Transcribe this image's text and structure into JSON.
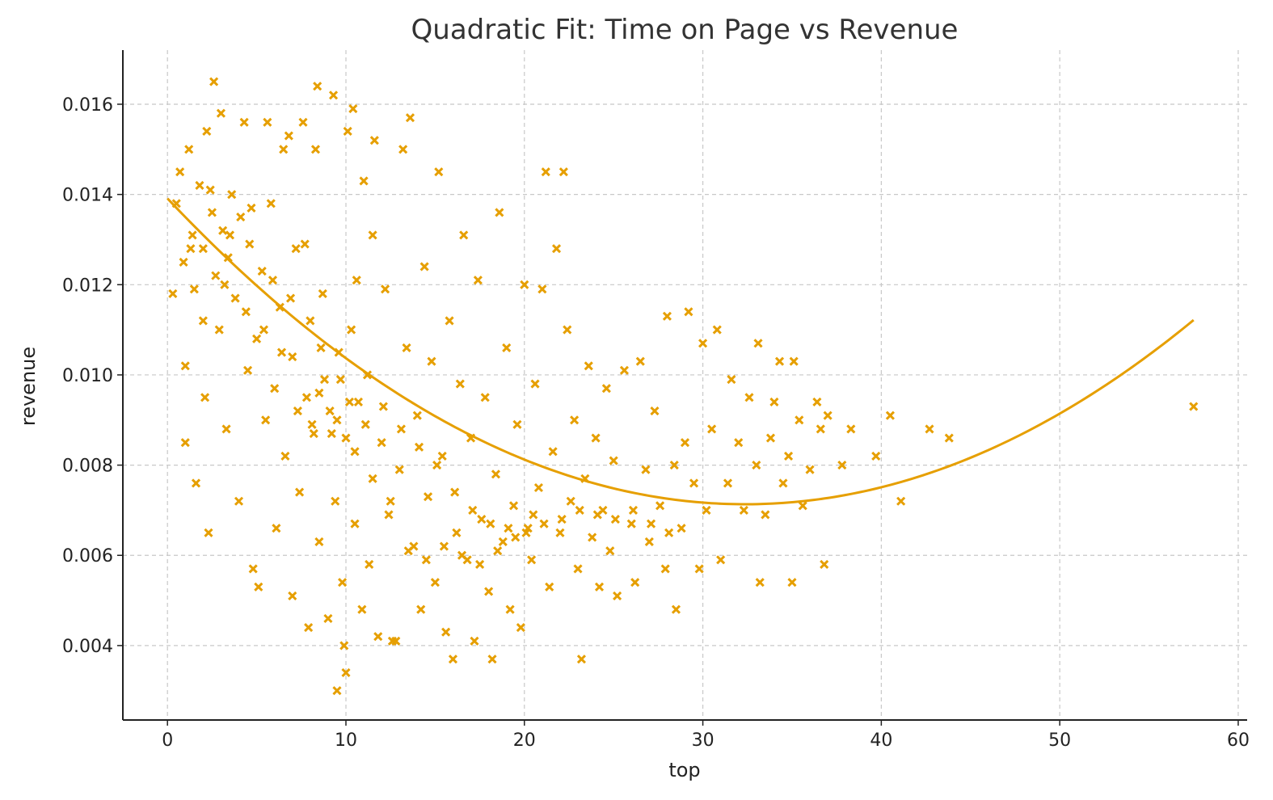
{
  "chart_data": {
    "type": "scatter",
    "title": "Quadratic Fit: Time on Page vs Revenue",
    "xlabel": "top",
    "ylabel": "revenue",
    "xlim": [
      -2.5,
      60.5
    ],
    "ylim": [
      0.00235,
      0.0172
    ],
    "x_ticks": [
      0,
      10,
      20,
      30,
      40,
      50,
      60
    ],
    "x_tick_labels": [
      "0",
      "10",
      "20",
      "30",
      "40",
      "50",
      "60"
    ],
    "y_ticks": [
      0.004,
      0.006,
      0.008,
      0.01,
      0.012,
      0.014,
      0.016
    ],
    "y_tick_labels": [
      "0.004",
      "0.006",
      "0.008",
      "0.010",
      "0.012",
      "0.014",
      "0.016"
    ],
    "grid": true,
    "marker": "x",
    "color": "#E69F00",
    "series": [
      {
        "kind": "scatter",
        "points": [
          [
            0.3,
            0.0118
          ],
          [
            0.5,
            0.0138
          ],
          [
            0.7,
            0.0145
          ],
          [
            0.9,
            0.0125
          ],
          [
            1.0,
            0.0102
          ],
          [
            1.0,
            0.0085
          ],
          [
            1.2,
            0.015
          ],
          [
            1.4,
            0.0131
          ],
          [
            1.5,
            0.0119
          ],
          [
            1.6,
            0.0076
          ],
          [
            1.8,
            0.0142
          ],
          [
            2.0,
            0.0128
          ],
          [
            2.1,
            0.0095
          ],
          [
            2.2,
            0.0154
          ],
          [
            2.3,
            0.0065
          ],
          [
            2.5,
            0.0136
          ],
          [
            2.6,
            0.0165
          ],
          [
            2.7,
            0.0122
          ],
          [
            2.9,
            0.011
          ],
          [
            3.0,
            0.0158
          ],
          [
            3.1,
            0.0132
          ],
          [
            3.3,
            0.0088
          ],
          [
            3.4,
            0.0126
          ],
          [
            3.6,
            0.014
          ],
          [
            3.8,
            0.0117
          ],
          [
            4.0,
            0.0072
          ],
          [
            4.1,
            0.0135
          ],
          [
            4.3,
            0.0156
          ],
          [
            4.5,
            0.0101
          ],
          [
            4.6,
            0.0129
          ],
          [
            4.8,
            0.0057
          ],
          [
            5.0,
            0.0108
          ],
          [
            5.1,
            0.0053
          ],
          [
            5.3,
            0.0123
          ],
          [
            5.5,
            0.009
          ],
          [
            5.6,
            0.0156
          ],
          [
            5.8,
            0.0138
          ],
          [
            6.0,
            0.0097
          ],
          [
            6.1,
            0.0066
          ],
          [
            6.3,
            0.0115
          ],
          [
            6.5,
            0.015
          ],
          [
            6.6,
            0.0082
          ],
          [
            6.8,
            0.0153
          ],
          [
            7.0,
            0.0104
          ],
          [
            7.0,
            0.0051
          ],
          [
            7.2,
            0.0128
          ],
          [
            7.4,
            0.0074
          ],
          [
            7.6,
            0.0156
          ],
          [
            7.8,
            0.0095
          ],
          [
            7.9,
            0.0044
          ],
          [
            8.0,
            0.0112
          ],
          [
            8.2,
            0.0087
          ],
          [
            8.3,
            0.015
          ],
          [
            8.4,
            0.0164
          ],
          [
            8.5,
            0.0063
          ],
          [
            8.7,
            0.0118
          ],
          [
            8.8,
            0.0099
          ],
          [
            9.0,
            0.0046
          ],
          [
            9.1,
            0.0092
          ],
          [
            9.3,
            0.0162
          ],
          [
            9.4,
            0.0072
          ],
          [
            9.5,
            0.003
          ],
          [
            9.6,
            0.0105
          ],
          [
            9.8,
            0.0054
          ],
          [
            9.9,
            0.004
          ],
          [
            10.0,
            0.0086
          ],
          [
            10.0,
            0.0034
          ],
          [
            10.1,
            0.0154
          ],
          [
            10.3,
            0.011
          ],
          [
            10.4,
            0.0159
          ],
          [
            10.5,
            0.0067
          ],
          [
            10.7,
            0.0094
          ],
          [
            10.9,
            0.0048
          ],
          [
            11.0,
            0.0143
          ],
          [
            11.2,
            0.01
          ],
          [
            11.3,
            0.0058
          ],
          [
            11.5,
            0.0131
          ],
          [
            11.6,
            0.0152
          ],
          [
            11.8,
            0.0042
          ],
          [
            12.0,
            0.0085
          ],
          [
            12.2,
            0.0119
          ],
          [
            12.4,
            0.0069
          ],
          [
            12.6,
            0.0041
          ],
          [
            12.8,
            0.0041
          ],
          [
            13.0,
            0.0079
          ],
          [
            13.2,
            0.015
          ],
          [
            13.4,
            0.0106
          ],
          [
            13.6,
            0.0157
          ],
          [
            13.8,
            0.0062
          ],
          [
            14.0,
            0.0091
          ],
          [
            14.2,
            0.0048
          ],
          [
            14.4,
            0.0124
          ],
          [
            14.6,
            0.0073
          ],
          [
            14.8,
            0.0103
          ],
          [
            15.0,
            0.0054
          ],
          [
            15.2,
            0.0145
          ],
          [
            15.4,
            0.0082
          ],
          [
            15.6,
            0.0043
          ],
          [
            15.8,
            0.0112
          ],
          [
            16.0,
            0.0037
          ],
          [
            16.2,
            0.0065
          ],
          [
            16.4,
            0.0098
          ],
          [
            16.6,
            0.0131
          ],
          [
            16.8,
            0.0059
          ],
          [
            17.0,
            0.0086
          ],
          [
            17.2,
            0.0041
          ],
          [
            17.4,
            0.0121
          ],
          [
            17.6,
            0.0068
          ],
          [
            17.8,
            0.0095
          ],
          [
            18.0,
            0.0052
          ],
          [
            18.2,
            0.0037
          ],
          [
            18.4,
            0.0078
          ],
          [
            18.6,
            0.0136
          ],
          [
            18.8,
            0.0063
          ],
          [
            19.0,
            0.0106
          ],
          [
            19.2,
            0.0048
          ],
          [
            19.4,
            0.0071
          ],
          [
            19.6,
            0.0089
          ],
          [
            19.8,
            0.0044
          ],
          [
            20.0,
            0.012
          ],
          [
            20.2,
            0.0066
          ],
          [
            20.4,
            0.0059
          ],
          [
            20.6,
            0.0098
          ],
          [
            20.8,
            0.0075
          ],
          [
            21.0,
            0.0119
          ],
          [
            21.2,
            0.0145
          ],
          [
            21.4,
            0.0053
          ],
          [
            21.6,
            0.0083
          ],
          [
            21.8,
            0.0128
          ],
          [
            22.0,
            0.0065
          ],
          [
            22.2,
            0.0145
          ],
          [
            22.4,
            0.011
          ],
          [
            22.6,
            0.0072
          ],
          [
            22.8,
            0.009
          ],
          [
            23.0,
            0.0057
          ],
          [
            23.2,
            0.0037
          ],
          [
            23.4,
            0.0077
          ],
          [
            23.6,
            0.0102
          ],
          [
            23.8,
            0.0064
          ],
          [
            24.0,
            0.0086
          ],
          [
            24.2,
            0.0053
          ],
          [
            24.4,
            0.007
          ],
          [
            24.6,
            0.0097
          ],
          [
            24.8,
            0.0061
          ],
          [
            25.0,
            0.0081
          ],
          [
            25.2,
            0.0051
          ],
          [
            25.6,
            0.0101
          ],
          [
            26.0,
            0.0067
          ],
          [
            26.2,
            0.0054
          ],
          [
            26.5,
            0.0103
          ],
          [
            26.8,
            0.0079
          ],
          [
            27.0,
            0.0063
          ],
          [
            27.3,
            0.0092
          ],
          [
            27.6,
            0.0071
          ],
          [
            27.9,
            0.0057
          ],
          [
            28.0,
            0.0113
          ],
          [
            28.4,
            0.008
          ],
          [
            28.5,
            0.0048
          ],
          [
            28.8,
            0.0066
          ],
          [
            29.0,
            0.0085
          ],
          [
            29.2,
            0.0114
          ],
          [
            29.5,
            0.0076
          ],
          [
            29.8,
            0.0057
          ],
          [
            30.0,
            0.0107
          ],
          [
            30.2,
            0.007
          ],
          [
            30.5,
            0.0088
          ],
          [
            30.8,
            0.011
          ],
          [
            31.0,
            0.0059
          ],
          [
            31.4,
            0.0076
          ],
          [
            31.6,
            0.0099
          ],
          [
            32.0,
            0.0085
          ],
          [
            32.3,
            0.007
          ],
          [
            32.6,
            0.0095
          ],
          [
            33.0,
            0.008
          ],
          [
            33.1,
            0.0107
          ],
          [
            33.2,
            0.0054
          ],
          [
            33.5,
            0.0069
          ],
          [
            33.8,
            0.0086
          ],
          [
            34.0,
            0.0094
          ],
          [
            34.3,
            0.0103
          ],
          [
            34.5,
            0.0076
          ],
          [
            34.8,
            0.0082
          ],
          [
            35.0,
            0.0054
          ],
          [
            35.1,
            0.0103
          ],
          [
            35.4,
            0.009
          ],
          [
            35.6,
            0.0071
          ],
          [
            36.0,
            0.0079
          ],
          [
            36.4,
            0.0094
          ],
          [
            36.6,
            0.0088
          ],
          [
            36.8,
            0.0058
          ],
          [
            37.0,
            0.0091
          ],
          [
            37.8,
            0.008
          ],
          [
            38.3,
            0.0088
          ],
          [
            39.7,
            0.0082
          ],
          [
            40.5,
            0.0091
          ],
          [
            41.1,
            0.0072
          ],
          [
            42.7,
            0.0088
          ],
          [
            43.8,
            0.0086
          ],
          [
            57.5,
            0.0093
          ],
          [
            1.3,
            0.0128
          ],
          [
            2.4,
            0.0141
          ],
          [
            3.5,
            0.0131
          ],
          [
            4.7,
            0.0137
          ],
          [
            5.9,
            0.0121
          ],
          [
            6.9,
            0.0117
          ],
          [
            7.7,
            0.0129
          ],
          [
            8.6,
            0.0106
          ],
          [
            9.7,
            0.0099
          ],
          [
            10.6,
            0.0121
          ],
          [
            2.0,
            0.0112
          ],
          [
            3.2,
            0.012
          ],
          [
            4.4,
            0.0114
          ],
          [
            5.4,
            0.011
          ],
          [
            6.4,
            0.0105
          ],
          [
            7.3,
            0.0092
          ],
          [
            8.1,
            0.0089
          ],
          [
            9.2,
            0.0087
          ],
          [
            10.2,
            0.0094
          ],
          [
            11.1,
            0.0089
          ],
          [
            12.1,
            0.0093
          ],
          [
            13.1,
            0.0088
          ],
          [
            14.1,
            0.0084
          ],
          [
            15.1,
            0.008
          ],
          [
            16.1,
            0.0074
          ],
          [
            17.1,
            0.007
          ],
          [
            18.1,
            0.0067
          ],
          [
            19.1,
            0.0066
          ],
          [
            20.1,
            0.0065
          ],
          [
            21.1,
            0.0067
          ],
          [
            22.1,
            0.0068
          ],
          [
            23.1,
            0.007
          ],
          [
            24.1,
            0.0069
          ],
          [
            25.1,
            0.0068
          ],
          [
            26.1,
            0.007
          ],
          [
            27.1,
            0.0067
          ],
          [
            28.1,
            0.0065
          ],
          [
            15.5,
            0.0062
          ],
          [
            16.5,
            0.006
          ],
          [
            17.5,
            0.0058
          ],
          [
            18.5,
            0.0061
          ],
          [
            19.5,
            0.0064
          ],
          [
            20.5,
            0.0069
          ],
          [
            13.5,
            0.0061
          ],
          [
            14.5,
            0.0059
          ],
          [
            12.5,
            0.0072
          ],
          [
            11.5,
            0.0077
          ],
          [
            10.5,
            0.0083
          ],
          [
            9.5,
            0.009
          ],
          [
            8.5,
            0.0096
          ]
        ]
      },
      {
        "kind": "fit",
        "coefficients": [
          0.013911,
          -0.00041875,
          6.4675e-06
        ],
        "x_range": [
          0.0,
          57.5
        ]
      }
    ]
  }
}
